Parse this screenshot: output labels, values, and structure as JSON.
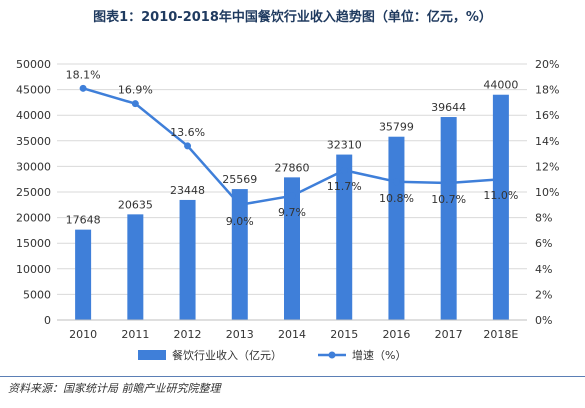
{
  "title": "图表1：2010-2018年中国餐饮行业收入趋势图（单位：亿元，%）",
  "source": "资料来源：国家统计局 前瞻产业研究院整理",
  "chart_data": {
    "type": "bar",
    "categories": [
      "2010",
      "2011",
      "2012",
      "2013",
      "2014",
      "2015",
      "2016",
      "2017",
      "2018E"
    ],
    "series": [
      {
        "name": "餐饮行业收入（亿元）",
        "type": "bar",
        "axis": "left",
        "color": "#3f7fd9",
        "values": [
          17648,
          20635,
          23448,
          25569,
          27860,
          32310,
          35799,
          39644,
          44000
        ]
      },
      {
        "name": "增速（%）",
        "type": "line",
        "axis": "right",
        "color": "#3f7fd9",
        "values": [
          18.1,
          16.9,
          13.6,
          9.0,
          9.7,
          11.7,
          10.8,
          10.7,
          11.0
        ],
        "labels": [
          "18.1%",
          "16.9%",
          "13.6%",
          "9.0%",
          "9.7%",
          "11.7%",
          "10.8%",
          "10.7%",
          "11.0%"
        ]
      }
    ],
    "y_left": {
      "min": 0,
      "max": 50000,
      "ticks": [
        0,
        5000,
        10000,
        15000,
        20000,
        25000,
        30000,
        35000,
        40000,
        45000,
        50000
      ]
    },
    "y_right": {
      "min": 0,
      "max": 20,
      "ticks": [
        "0%",
        "2%",
        "4%",
        "6%",
        "8%",
        "10%",
        "12%",
        "14%",
        "16%",
        "18%",
        "20%"
      ]
    },
    "grid": true,
    "legend_position": "bottom"
  }
}
